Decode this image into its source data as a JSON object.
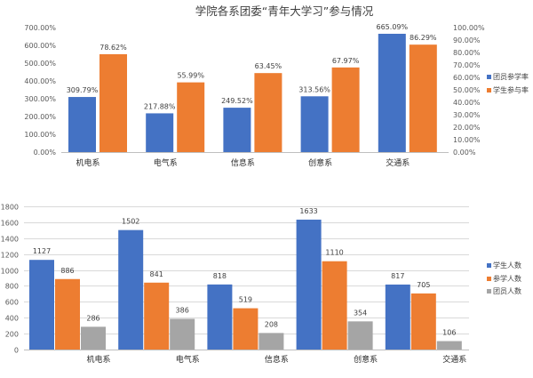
{
  "colors": {
    "blue": "#4472C4",
    "orange": "#ED7D31",
    "gray": "#A5A5A5",
    "grid": "#D9D9D9"
  },
  "chart_data": [
    {
      "type": "bar",
      "title": "学院各系团委“青年大学习”参与情况",
      "categories": [
        "机电系",
        "电气系",
        "信息系",
        "创意系",
        "交通系"
      ],
      "series": [
        {
          "name": "团员参学率",
          "axis": "left",
          "values": [
            309.79,
            217.88,
            249.52,
            313.56,
            665.09
          ],
          "labels": [
            "309.79%",
            "217.88%",
            "249.52%",
            "313.56%",
            "665.09%"
          ]
        },
        {
          "name": "学生参与率",
          "axis": "right",
          "values": [
            78.62,
            55.99,
            63.45,
            67.97,
            86.29
          ],
          "labels": [
            "78.62%",
            "55.99%",
            "63.45%",
            "67.97%",
            "86.29%"
          ]
        }
      ],
      "y_left": {
        "min": 0,
        "max": 700,
        "ticks": [
          "0.00%",
          "100.00%",
          "200.00%",
          "300.00%",
          "400.00%",
          "500.00%",
          "600.00%",
          "700.00%"
        ]
      },
      "y_right": {
        "min": 0,
        "max": 100,
        "ticks": [
          "0.00%",
          "10.00%",
          "20.00%",
          "30.00%",
          "40.00%",
          "50.00%",
          "60.00%",
          "70.00%",
          "80.00%",
          "90.00%",
          "100.00%"
        ]
      },
      "grid": false,
      "legend": "right"
    },
    {
      "type": "bar",
      "title": "",
      "categories": [
        "机电系",
        "电气系",
        "信息系",
        "创意系",
        "交通系"
      ],
      "series": [
        {
          "name": "学生人数",
          "values": [
            1127,
            1502,
            818,
            1633,
            817
          ]
        },
        {
          "name": "参学人数",
          "values": [
            886,
            841,
            519,
            1110,
            705
          ]
        },
        {
          "name": "团员人数",
          "values": [
            286,
            386,
            208,
            354,
            106
          ]
        }
      ],
      "y": {
        "min": 0,
        "max": 1800,
        "ticks": [
          "0",
          "200",
          "400",
          "600",
          "800",
          "1000",
          "1200",
          "1400",
          "1600",
          "1800"
        ]
      },
      "grid": true,
      "legend": "right"
    }
  ]
}
